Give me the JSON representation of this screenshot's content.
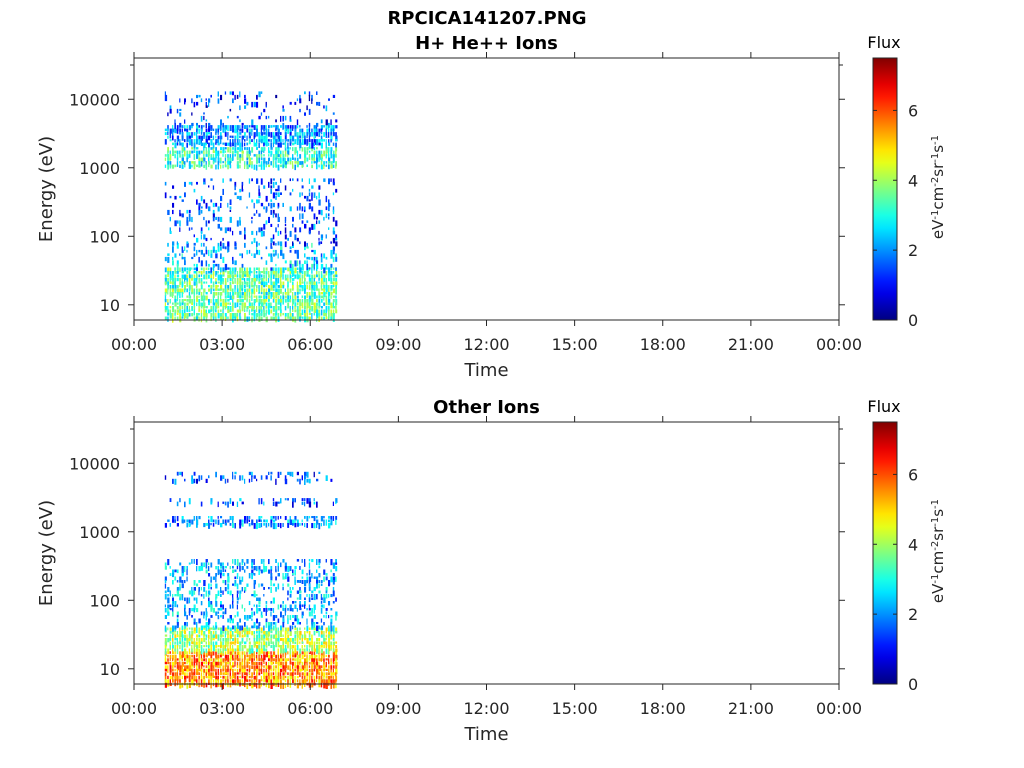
{
  "figure": {
    "title_line1": "RPCICA141207.PNG",
    "colorbar_unit_parts": [
      "eV",
      "-1",
      "cm",
      "-2",
      "sr",
      "-1",
      "s",
      "-1"
    ]
  },
  "colormap": "jet",
  "chart_data": [
    {
      "type": "heatmap",
      "title": "H+ He++ Ions",
      "xlabel": "Time",
      "ylabel": "Energy (eV)",
      "x_ticks": [
        "00:00",
        "03:00",
        "06:00",
        "09:00",
        "12:00",
        "15:00",
        "18:00",
        "21:00",
        "00:00"
      ],
      "x_range_hours": [
        0,
        24
      ],
      "y_scale": "log",
      "y_range": [
        6,
        40000
      ],
      "y_ticks": [
        10,
        100,
        1000,
        10000
      ],
      "y_tick_labels": [
        "10",
        "100",
        "1000",
        "10000"
      ],
      "colorbar": {
        "title": "Flux",
        "range": [
          0,
          7.5
        ],
        "ticks": [
          0,
          2,
          4,
          6
        ],
        "tick_labels": [
          "0",
          "2",
          "4",
          "6"
        ]
      },
      "data_time_range_hours": [
        1.05,
        6.9
      ],
      "bands": [
        {
          "e_min": 6,
          "e_max": 35,
          "flux": 3.4,
          "density": 0.85
        },
        {
          "e_min": 35,
          "e_max": 80,
          "flux": 2.3,
          "density": 0.3
        },
        {
          "e_min": 80,
          "e_max": 700,
          "flux": 1.6,
          "density": 0.2
        },
        {
          "e_min": 1100,
          "e_max": 2000,
          "flux": 3.1,
          "density": 0.75
        },
        {
          "e_min": 2300,
          "e_max": 4200,
          "flux": 2.0,
          "density": 0.8
        },
        {
          "e_min": 4200,
          "e_max": 13000,
          "flux": 1.3,
          "density": 0.15
        }
      ]
    },
    {
      "type": "heatmap",
      "title": "Other Ions",
      "xlabel": "Time",
      "ylabel": "Energy (eV)",
      "x_ticks": [
        "00:00",
        "03:00",
        "06:00",
        "09:00",
        "12:00",
        "15:00",
        "18:00",
        "21:00",
        "00:00"
      ],
      "x_range_hours": [
        0,
        24
      ],
      "y_scale": "log",
      "y_range": [
        6,
        40000
      ],
      "y_ticks": [
        10,
        100,
        1000,
        10000
      ],
      "y_tick_labels": [
        "10",
        "100",
        "1000",
        "10000"
      ],
      "colorbar": {
        "title": "Flux",
        "range": [
          0,
          7.5
        ],
        "ticks": [
          0,
          2,
          4,
          6
        ],
        "tick_labels": [
          "0",
          "2",
          "4",
          "6"
        ]
      },
      "data_time_range_hours": [
        1.05,
        6.9
      ],
      "bands": [
        {
          "e_min": 6,
          "e_max": 18,
          "flux": 5.5,
          "density": 0.95
        },
        {
          "e_min": 18,
          "e_max": 40,
          "flux": 4.0,
          "density": 0.85
        },
        {
          "e_min": 40,
          "e_max": 400,
          "flux": 2.2,
          "density": 0.4
        },
        {
          "e_min": 1200,
          "e_max": 1700,
          "flux": 2.0,
          "density": 0.65
        },
        {
          "e_min": 2700,
          "e_max": 3100,
          "flux": 1.6,
          "density": 0.35
        },
        {
          "e_min": 5500,
          "e_max": 7500,
          "flux": 1.5,
          "density": 0.3
        }
      ]
    }
  ]
}
